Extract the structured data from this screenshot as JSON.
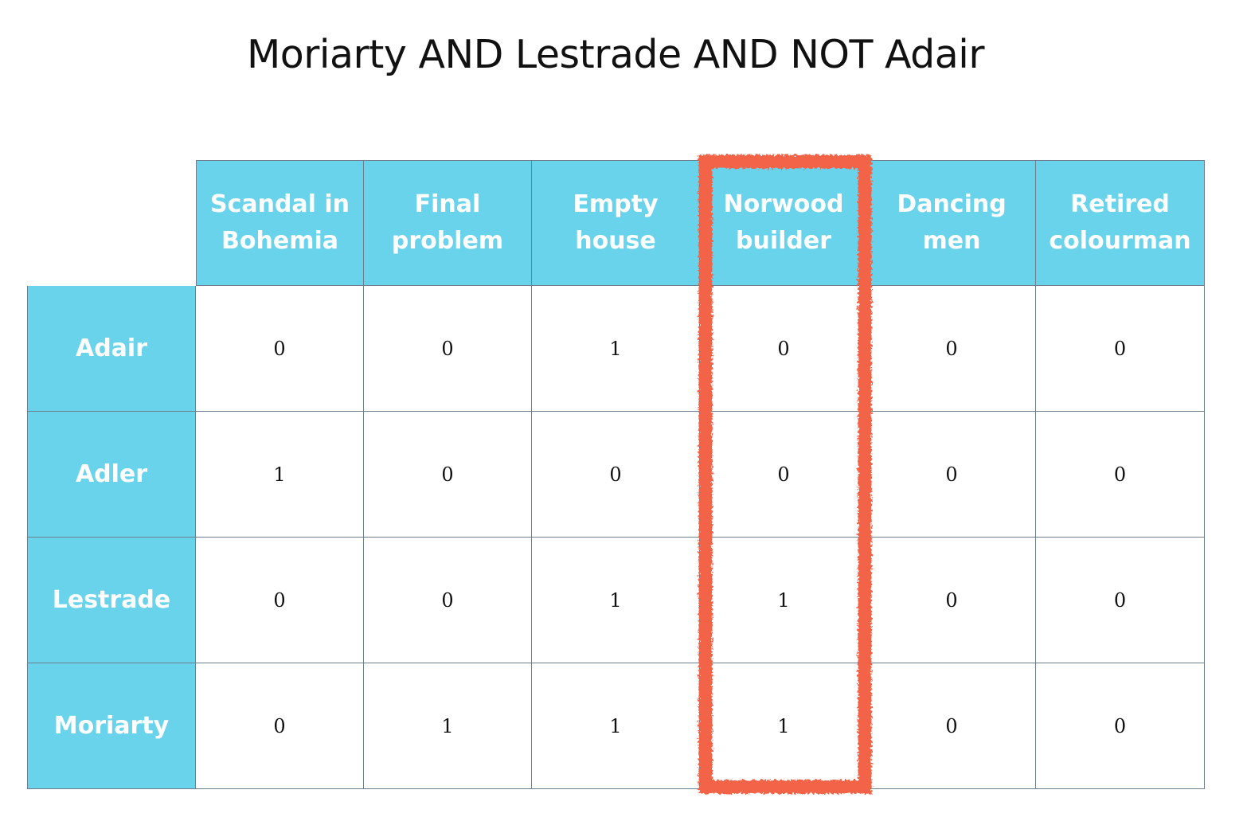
{
  "title": "Moriarty AND Lestrade AND NOT Adair",
  "columns": [
    "Scandal in Bohemia",
    "Final problem",
    "Empty house",
    "Norwood builder",
    "Dancing men",
    "Retired colourman"
  ],
  "rows": [
    {
      "label": "Adair",
      "values": [
        "0",
        "0",
        "1",
        "0",
        "0",
        "0"
      ]
    },
    {
      "label": "Adler",
      "values": [
        "1",
        "0",
        "0",
        "0",
        "0",
        "0"
      ]
    },
    {
      "label": "Lestrade",
      "values": [
        "0",
        "0",
        "1",
        "1",
        "0",
        "0"
      ]
    },
    {
      "label": "Moriarty",
      "values": [
        "0",
        "1",
        "1",
        "1",
        "0",
        "0"
      ]
    }
  ],
  "highlighted_column": "Norwood builder",
  "colors": {
    "header_bg": "#69d3ec",
    "header_text": "#ffffff",
    "highlight": "#f26446",
    "border": "#6d7f8f"
  }
}
